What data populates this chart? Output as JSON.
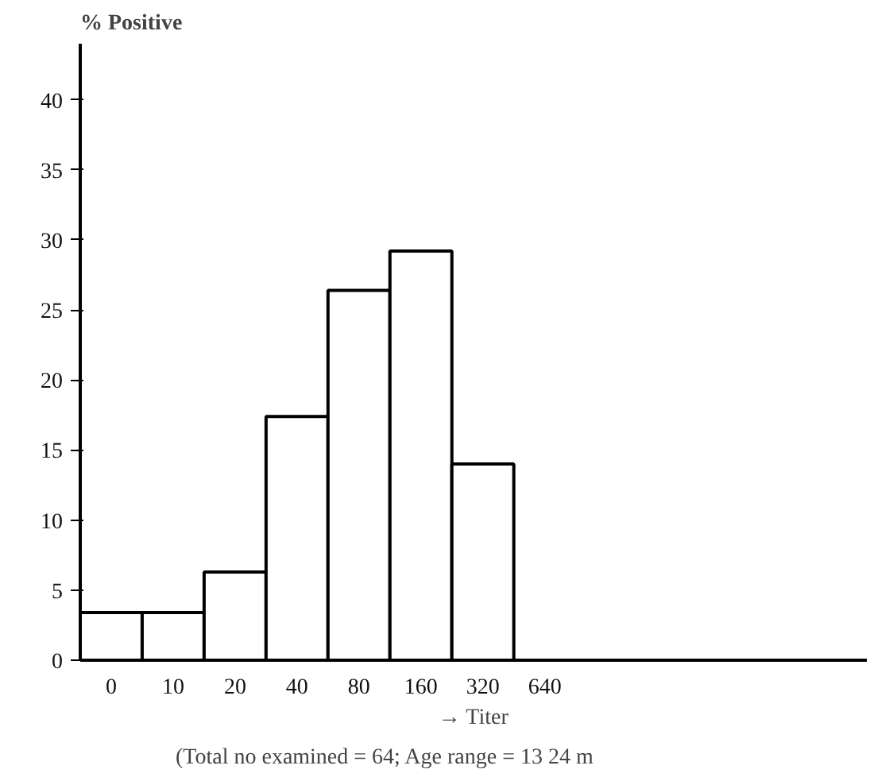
{
  "chart_data": {
    "type": "bar",
    "ylabel": "% Positive",
    "xlabel": "→ Titer",
    "categories": [
      "0",
      "10",
      "20",
      "40",
      "80",
      "160",
      "320",
      "640"
    ],
    "values": [
      3.4,
      3.4,
      6.3,
      17.4,
      26.4,
      29.2,
      14.0,
      null
    ],
    "color": "#ffffff",
    "ylim": [
      0,
      44
    ],
    "yticks": [
      0,
      5,
      10,
      15,
      20,
      25,
      30,
      35,
      40
    ],
    "grid": false,
    "annotations": [
      "(Total no examined = 64; Age range = 13    24 m"
    ]
  }
}
